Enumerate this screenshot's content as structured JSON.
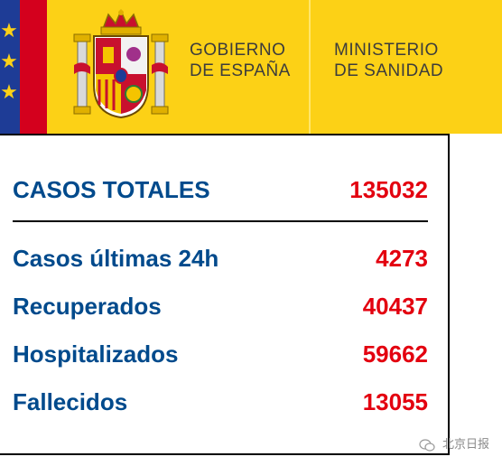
{
  "header": {
    "government_line1": "GOBIERNO",
    "government_line2": "DE ESPAÑA",
    "ministry_line1": "MINISTERIO",
    "ministry_line2": "DE SANIDAD",
    "colors": {
      "gold": "#fcd116",
      "eu_blue": "#1e3c96",
      "red": "#d4001d"
    },
    "icons": [
      "eu-star-icon",
      "coat-of-arms-icon"
    ]
  },
  "stats": {
    "total_label": "CASOS TOTALES",
    "total_value": "135032",
    "rows": [
      {
        "label": "Casos últimas 24h",
        "value": "4273"
      },
      {
        "label": "Recuperados",
        "value": "40437"
      },
      {
        "label": "Hospitalizados",
        "value": "59662"
      },
      {
        "label": "Fallecidos",
        "value": "13055"
      }
    ],
    "colors": {
      "label": "#004a8c",
      "value": "#e3000f"
    }
  },
  "watermark": {
    "text": "北京日报"
  }
}
